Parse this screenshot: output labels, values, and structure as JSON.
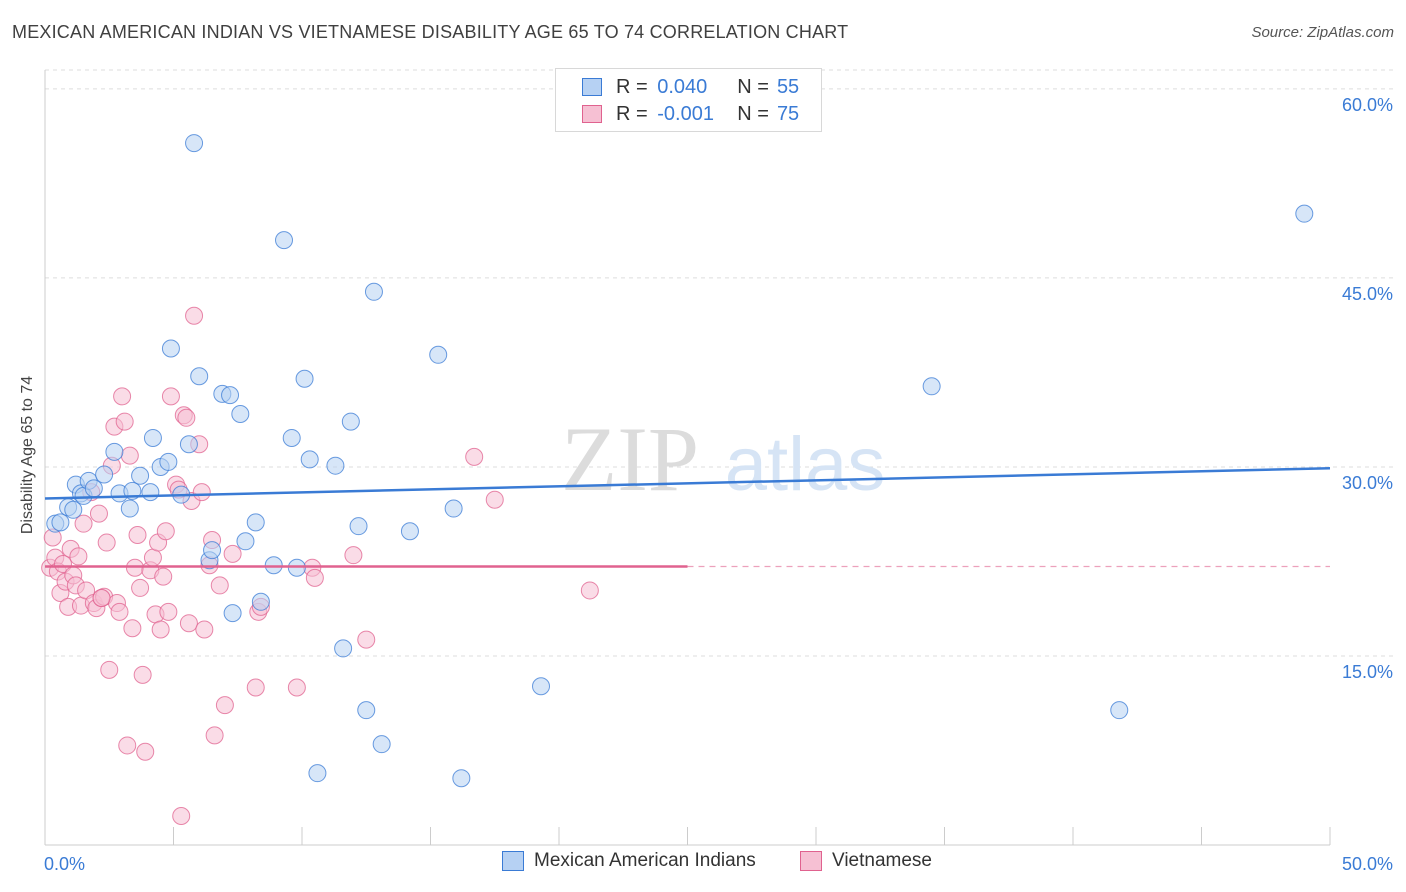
{
  "title": "MEXICAN AMERICAN INDIAN VS VIETNAMESE DISABILITY AGE 65 TO 74 CORRELATION CHART",
  "source": "Source: ZipAtlas.com",
  "watermark": {
    "zip": "ZIP",
    "atlas": "atlas"
  },
  "colors": {
    "blue": "#3a7bd5",
    "blue_fill": "#b6d1f3",
    "pink": "#e0628f",
    "pink_fill": "#f6c0d3",
    "grid": "#dddddd",
    "axis_text": "#3a7bd5"
  },
  "legend": {
    "r_label": "R =",
    "n_label": "N =",
    "rows": [
      {
        "r": "0.040",
        "n": "55"
      },
      {
        "r": "-0.001",
        "n": "75"
      }
    ]
  },
  "series_labels": {
    "blue": "Mexican American Indians",
    "pink": "Vietnamese"
  },
  "chart_data": {
    "type": "scatter",
    "title": "MEXICAN AMERICAN INDIAN VS VIETNAMESE DISABILITY AGE 65 TO 74 CORRELATION CHART",
    "xlabel": "",
    "ylabel": "Disability Age 65 to 74",
    "xlim": [
      0,
      50
    ],
    "ylim": [
      0,
      61.5
    ],
    "x_tick_labels": [
      "0.0%",
      "50.0%"
    ],
    "y_ticks": [
      15,
      30,
      45,
      60
    ],
    "y_tick_labels": [
      "15.0%",
      "30.0%",
      "45.0%",
      "60.0%"
    ],
    "grid": true,
    "series": [
      {
        "name": "Mexican American Indians",
        "r": 0.04,
        "n": 55,
        "trend": {
          "x": [
            0,
            50
          ],
          "y": [
            27.5,
            29.9
          ],
          "dashed_from": null
        },
        "points": [
          [
            0.4,
            25.5
          ],
          [
            0.6,
            25.6
          ],
          [
            0.9,
            26.8
          ],
          [
            1.1,
            26.6
          ],
          [
            1.2,
            28.6
          ],
          [
            1.4,
            27.9
          ],
          [
            1.5,
            27.7
          ],
          [
            1.7,
            28.9
          ],
          [
            1.9,
            28.3
          ],
          [
            2.3,
            29.4
          ],
          [
            2.7,
            31.2
          ],
          [
            2.9,
            27.9
          ],
          [
            3.3,
            26.7
          ],
          [
            3.4,
            28.1
          ],
          [
            3.7,
            29.3
          ],
          [
            4.1,
            28.0
          ],
          [
            4.2,
            32.3
          ],
          [
            4.5,
            30.0
          ],
          [
            4.8,
            30.4
          ],
          [
            4.9,
            39.4
          ],
          [
            5.3,
            27.8
          ],
          [
            5.6,
            31.8
          ],
          [
            5.8,
            55.7
          ],
          [
            6.0,
            37.2
          ],
          [
            6.4,
            22.6
          ],
          [
            6.5,
            23.4
          ],
          [
            6.9,
            35.8
          ],
          [
            7.2,
            35.7
          ],
          [
            7.3,
            18.4
          ],
          [
            7.6,
            34.2
          ],
          [
            7.8,
            24.1
          ],
          [
            8.2,
            25.6
          ],
          [
            8.4,
            19.3
          ],
          [
            8.9,
            22.2
          ],
          [
            9.3,
            48.0
          ],
          [
            9.6,
            32.3
          ],
          [
            9.8,
            22.0
          ],
          [
            10.1,
            37.0
          ],
          [
            10.3,
            30.6
          ],
          [
            10.6,
            5.7
          ],
          [
            11.3,
            30.1
          ],
          [
            11.6,
            15.6
          ],
          [
            11.9,
            33.6
          ],
          [
            12.2,
            25.3
          ],
          [
            12.5,
            10.7
          ],
          [
            12.8,
            43.9
          ],
          [
            13.1,
            8.0
          ],
          [
            14.2,
            24.9
          ],
          [
            15.3,
            38.9
          ],
          [
            15.9,
            26.7
          ],
          [
            16.2,
            5.3
          ],
          [
            19.3,
            12.6
          ],
          [
            34.5,
            36.4
          ],
          [
            41.8,
            10.7
          ],
          [
            49.0,
            50.1
          ]
        ]
      },
      {
        "name": "Vietnamese",
        "r": -0.001,
        "n": 75,
        "trend": {
          "x": [
            0,
            50
          ],
          "y": [
            22.1,
            22.1
          ],
          "dashed_from": 25
        },
        "points": [
          [
            0.2,
            22.0
          ],
          [
            0.3,
            24.4
          ],
          [
            0.4,
            22.8
          ],
          [
            0.5,
            21.7
          ],
          [
            0.6,
            20.0
          ],
          [
            0.7,
            22.3
          ],
          [
            0.8,
            20.9
          ],
          [
            0.9,
            18.9
          ],
          [
            1.0,
            23.5
          ],
          [
            1.1,
            21.4
          ],
          [
            1.2,
            20.6
          ],
          [
            1.3,
            22.9
          ],
          [
            1.4,
            19.0
          ],
          [
            1.5,
            25.5
          ],
          [
            1.6,
            20.2
          ],
          [
            1.8,
            28.0
          ],
          [
            1.9,
            19.2
          ],
          [
            2.0,
            18.8
          ],
          [
            2.1,
            26.3
          ],
          [
            2.2,
            19.6
          ],
          [
            2.3,
            19.7
          ],
          [
            2.4,
            24.0
          ],
          [
            2.5,
            13.9
          ],
          [
            2.6,
            30.1
          ],
          [
            2.7,
            33.2
          ],
          [
            2.8,
            19.2
          ],
          [
            2.9,
            18.5
          ],
          [
            3.0,
            35.6
          ],
          [
            3.1,
            33.6
          ],
          [
            3.2,
            7.9
          ],
          [
            3.3,
            30.9
          ],
          [
            3.4,
            17.2
          ],
          [
            3.5,
            22.0
          ],
          [
            3.6,
            24.6
          ],
          [
            3.7,
            20.4
          ],
          [
            3.8,
            13.5
          ],
          [
            3.9,
            7.4
          ],
          [
            4.1,
            21.8
          ],
          [
            4.2,
            22.8
          ],
          [
            4.3,
            18.3
          ],
          [
            4.4,
            24.0
          ],
          [
            4.5,
            17.1
          ],
          [
            4.6,
            21.3
          ],
          [
            4.7,
            24.9
          ],
          [
            4.8,
            18.5
          ],
          [
            4.9,
            35.6
          ],
          [
            5.1,
            28.6
          ],
          [
            5.2,
            28.2
          ],
          [
            5.3,
            2.3
          ],
          [
            5.4,
            34.1
          ],
          [
            5.5,
            33.9
          ],
          [
            5.6,
            17.6
          ],
          [
            5.7,
            27.3
          ],
          [
            5.8,
            42.0
          ],
          [
            6.0,
            31.8
          ],
          [
            6.1,
            28.0
          ],
          [
            6.2,
            17.1
          ],
          [
            6.4,
            22.2
          ],
          [
            6.5,
            24.2
          ],
          [
            6.6,
            8.7
          ],
          [
            6.8,
            20.6
          ],
          [
            7.0,
            11.1
          ],
          [
            7.3,
            23.1
          ],
          [
            8.2,
            12.5
          ],
          [
            8.3,
            18.5
          ],
          [
            9.8,
            12.5
          ],
          [
            10.4,
            22.0
          ],
          [
            10.5,
            21.2
          ],
          [
            12.0,
            23.0
          ],
          [
            12.5,
            16.3
          ],
          [
            16.7,
            30.8
          ],
          [
            17.5,
            27.4
          ],
          [
            21.2,
            20.2
          ],
          [
            8.4,
            18.9
          ],
          [
            2.2,
            19.6
          ]
        ]
      }
    ]
  }
}
